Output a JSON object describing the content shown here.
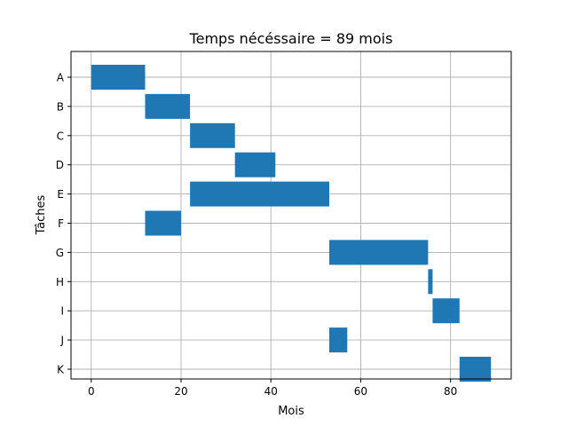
{
  "chart_data": {
    "type": "bar",
    "orientation": "horizontal",
    "title": "Temps nécéssaire = 89 mois",
    "xlabel": "Mois",
    "ylabel": "Tâches",
    "xlim": [
      -4.5,
      93.5
    ],
    "xticks": [
      0,
      20,
      40,
      60,
      80
    ],
    "grid": true,
    "bar_color": "#1f77b4",
    "tasks": [
      {
        "label": "A",
        "start": 0,
        "end": 12
      },
      {
        "label": "B",
        "start": 12,
        "end": 22
      },
      {
        "label": "C",
        "start": 22,
        "end": 32
      },
      {
        "label": "D",
        "start": 32,
        "end": 41
      },
      {
        "label": "E",
        "start": 22,
        "end": 53
      },
      {
        "label": "F",
        "start": 12,
        "end": 20
      },
      {
        "label": "G",
        "start": 53,
        "end": 75
      },
      {
        "label": "H",
        "start": 75,
        "end": 76
      },
      {
        "label": "I",
        "start": 76,
        "end": 82
      },
      {
        "label": "J",
        "start": 53,
        "end": 57
      },
      {
        "label": "K",
        "start": 82,
        "end": 89
      }
    ]
  }
}
